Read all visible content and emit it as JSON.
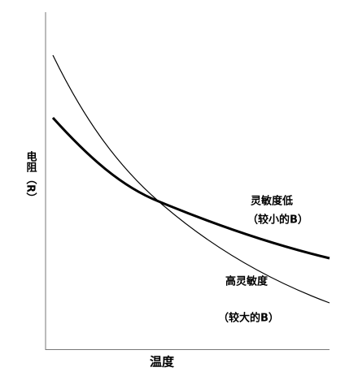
{
  "y_axis": {
    "label": "电阻",
    "unit": "（R）"
  },
  "x_axis": {
    "label": "温度"
  },
  "curves": [
    {
      "label": "灵敏度低",
      "note": "（较小的B）"
    },
    {
      "label": "高灵敏度",
      "note": "（较大的B）"
    }
  ]
}
